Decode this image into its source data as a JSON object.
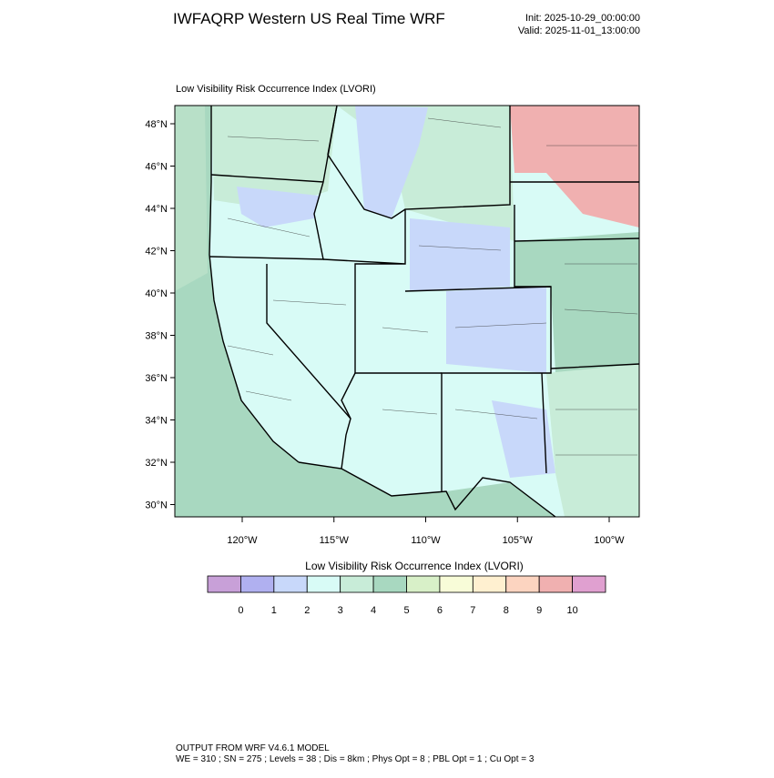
{
  "header": {
    "title": "IWFAQRP Western US Real Time WRF",
    "init": "Init: 2025-10-29_00:00:00",
    "valid": "Valid: 2025-11-01_13:00:00"
  },
  "map": {
    "title": "Low Visibility Risk Occurrence Index   (LVORI)",
    "lat_labels": [
      "48°N",
      "46°N",
      "44°N",
      "42°N",
      "40°N",
      "38°N",
      "36°N",
      "34°N",
      "32°N",
      "30°N"
    ],
    "lon_labels": [
      "120°W",
      "115°W",
      "110°W",
      "105°W",
      "100°W"
    ]
  },
  "colorbar": {
    "title": "Low Visibility Risk Occurrence Index  (LVORI)",
    "colors": [
      "#c8a0d8",
      "#b0b0f0",
      "#c8d8fa",
      "#d8fbf6",
      "#c8ecd8",
      "#a8d8c0",
      "#d8f0c8",
      "#f8fcd8",
      "#fff0d0",
      "#fcd4c0",
      "#f0b0b0",
      "#e0a0d0"
    ],
    "labels": [
      0,
      1,
      2,
      3,
      4,
      5,
      6,
      7,
      8,
      9,
      10
    ]
  },
  "footer": {
    "line1": "OUTPUT FROM WRF V4.6.1 MODEL",
    "line2": "WE = 310 ; SN = 275 ; Levels = 38 ; Dis = 8km ; Phys Opt = 8 ; PBL Opt = 1 ; Cu Opt = 3"
  }
}
